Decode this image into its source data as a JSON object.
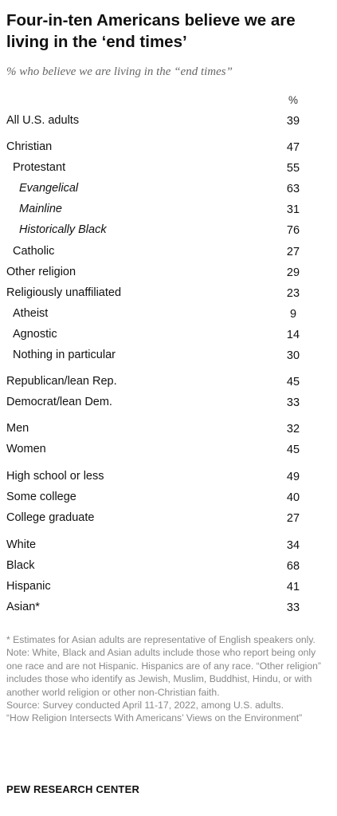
{
  "title": "Four-in-ten Americans believe we are living in the ‘end times’",
  "subtitle": "% who believe we are living in the “end times”",
  "chart_data": {
    "type": "table",
    "column_header": "%",
    "rows": [
      {
        "label": "All U.S. adults",
        "value": 39,
        "indent": 0,
        "italic": false
      },
      {
        "label": "Christian",
        "value": 47,
        "indent": 0,
        "italic": false
      },
      {
        "label": "Protestant",
        "value": 55,
        "indent": 1,
        "italic": false
      },
      {
        "label": "Evangelical",
        "value": 63,
        "indent": 2,
        "italic": true
      },
      {
        "label": "Mainline",
        "value": 31,
        "indent": 2,
        "italic": true
      },
      {
        "label": "Historically Black",
        "value": 76,
        "indent": 2,
        "italic": true
      },
      {
        "label": "Catholic",
        "value": 27,
        "indent": 1,
        "italic": false
      },
      {
        "label": "Other religion",
        "value": 29,
        "indent": 0,
        "italic": false
      },
      {
        "label": "Religiously unaffiliated",
        "value": 23,
        "indent": 0,
        "italic": false
      },
      {
        "label": "Atheist",
        "value": 9,
        "indent": 1,
        "italic": false
      },
      {
        "label": "Agnostic",
        "value": 14,
        "indent": 1,
        "italic": false
      },
      {
        "label": "Nothing in particular",
        "value": 30,
        "indent": 1,
        "italic": false
      },
      {
        "label": "Republican/lean Rep.",
        "value": 45,
        "indent": 0,
        "italic": false
      },
      {
        "label": "Democrat/lean Dem.",
        "value": 33,
        "indent": 0,
        "italic": false
      },
      {
        "label": "Men",
        "value": 32,
        "indent": 0,
        "italic": false
      },
      {
        "label": "Women",
        "value": 45,
        "indent": 0,
        "italic": false
      },
      {
        "label": "High school or less",
        "value": 49,
        "indent": 0,
        "italic": false
      },
      {
        "label": "Some college",
        "value": 40,
        "indent": 0,
        "italic": false
      },
      {
        "label": "College graduate",
        "value": 27,
        "indent": 0,
        "italic": false
      },
      {
        "label": "White",
        "value": 34,
        "indent": 0,
        "italic": false
      },
      {
        "label": "Black",
        "value": 68,
        "indent": 0,
        "italic": false
      },
      {
        "label": "Hispanic",
        "value": 41,
        "indent": 0,
        "italic": false
      },
      {
        "label": "Asian*",
        "value": 33,
        "indent": 0,
        "italic": false
      }
    ]
  },
  "footer": {
    "asterisk_note": "* Estimates for Asian adults are representative of English speakers only.",
    "note": "Note: White, Black and Asian adults include those who report being only one race and are not Hispanic. Hispanics are of any race. “Other religion” includes those who identify as Jewish, Muslim, Buddhist, Hindu, or with another world religion or other non-Christian faith.",
    "source": "Source: Survey conducted April 11-17, 2022, among U.S. adults.",
    "report_title": "“How Religion Intersects With Americans’ Views on the Environment”"
  },
  "brand": "PEW RESEARCH CENTER"
}
